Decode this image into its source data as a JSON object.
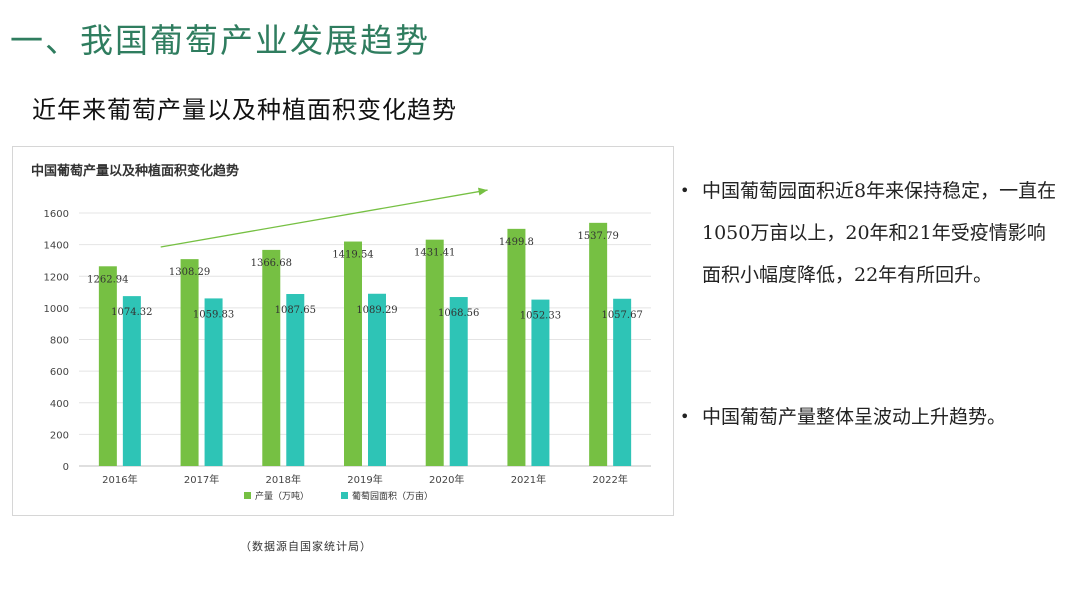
{
  "slide": {
    "title": "一、我国葡萄产业发展趋势",
    "subtitle": "近年来葡萄产量以及种植面积变化趋势"
  },
  "colors": {
    "title": "#2f7d5f",
    "production": "#76c043",
    "area": "#2ec4b6",
    "trend_arrow": "#76c043"
  },
  "chart_data": {
    "type": "bar",
    "title": "中国葡萄产量以及种植面积变化趋势",
    "categories": [
      "2016年",
      "2017年",
      "2018年",
      "2019年",
      "2020年",
      "2021年",
      "2022年"
    ],
    "series": [
      {
        "name": "产量（万吨）",
        "values": [
          1262.94,
          1308.29,
          1366.68,
          1419.54,
          1431.41,
          1499.8,
          1537.79
        ],
        "labels": [
          "1262.94",
          "1308.29",
          "1366.68",
          "1419.54",
          "1431.41",
          "1499.8",
          "1537.79"
        ]
      },
      {
        "name": "葡萄园面积（万亩）",
        "values": [
          1074.32,
          1059.83,
          1087.65,
          1089.29,
          1068.56,
          1052.33,
          1057.67
        ],
        "labels": [
          "1074.32",
          "1059.83",
          "1087.65",
          "1089.29",
          "1068.56",
          "1052.33",
          "1057.67"
        ]
      }
    ],
    "ylim": [
      0,
      1600
    ],
    "yticks": [
      "0",
      "200",
      "400",
      "600",
      "800",
      "1000",
      "1200",
      "1400",
      "1600"
    ],
    "grid": true,
    "legend": "bottom",
    "annotation": "upward trend arrow"
  },
  "source_note": "（数据源自国家统计局）",
  "bullets": [
    {
      "dot": "•",
      "text": "中国葡萄园面积近8年来保持稳定，一直在1050万亩以上，20年和21年受疫情影响面积小幅度降低，22年有所回升。"
    },
    {
      "dot": "•",
      "text": "中国葡萄产量整体呈波动上升趋势。"
    }
  ]
}
